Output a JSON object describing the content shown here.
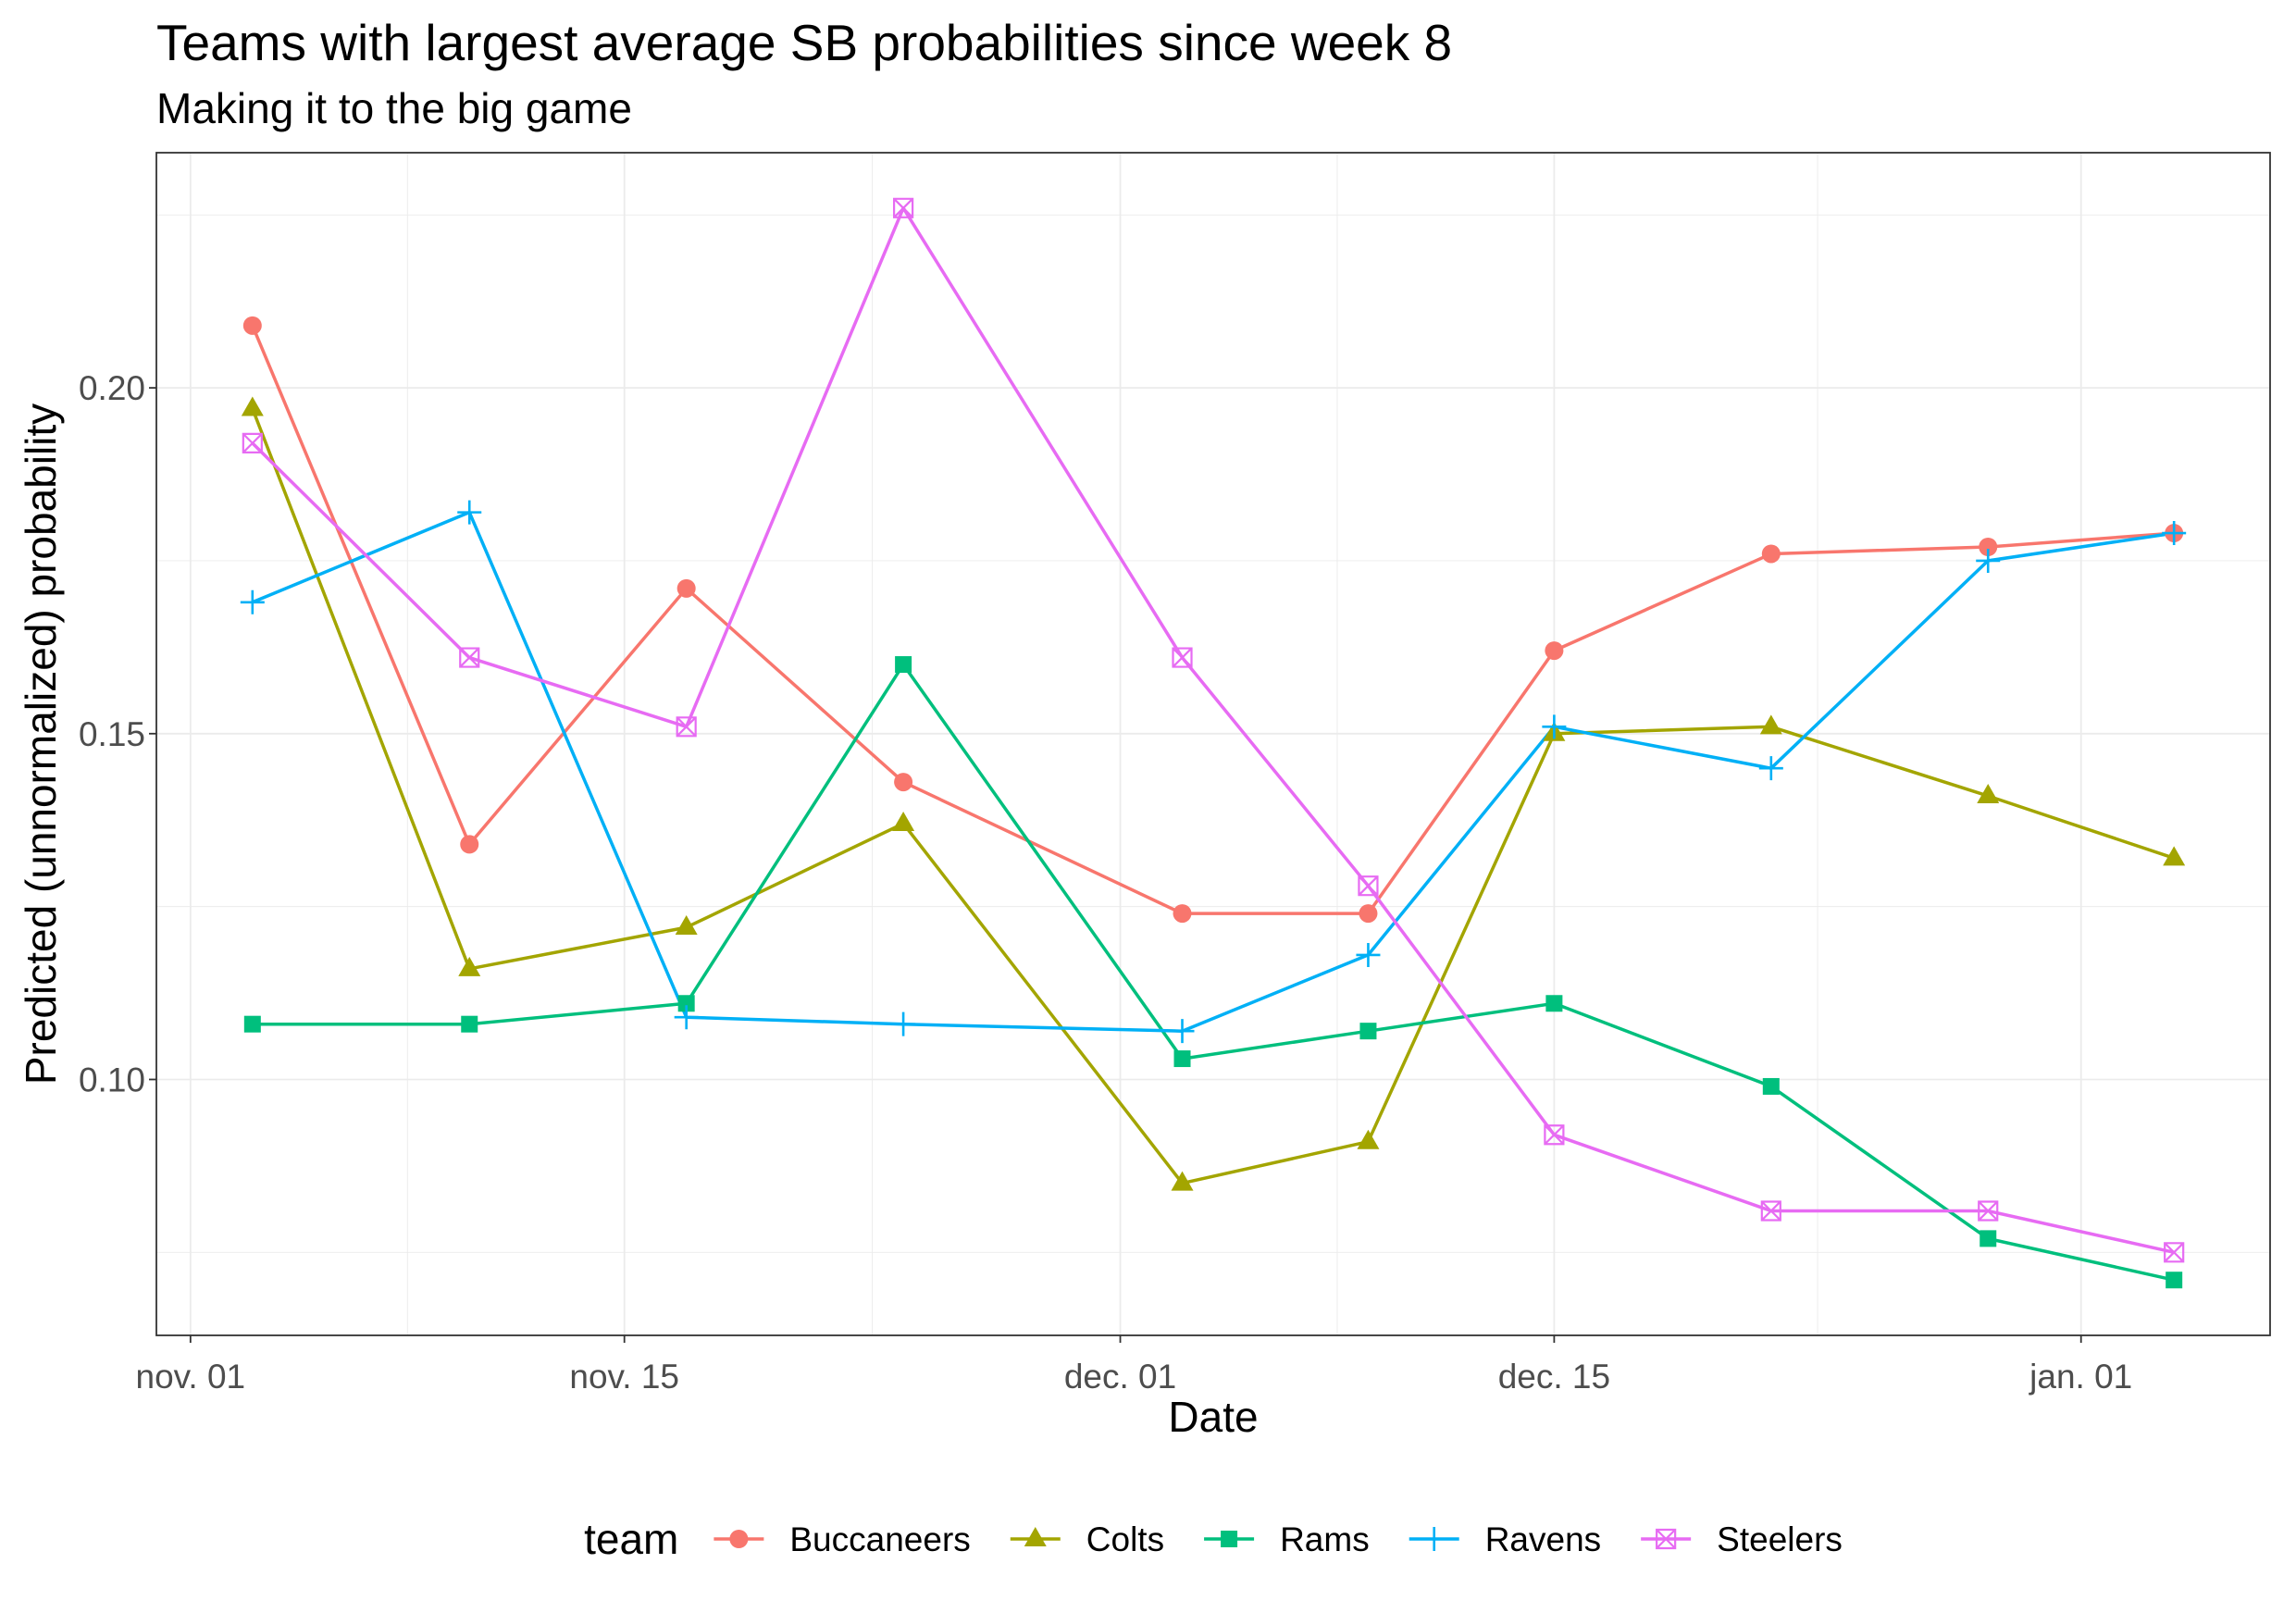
{
  "chart_data": {
    "type": "line",
    "title": "Teams with largest average SB probabilities since week 8",
    "subtitle": "Making it to the big game",
    "xlabel": "Date",
    "ylabel": "Predicted (unnormalized) probability",
    "x_ticks": [
      "nov. 01",
      "nov. 15",
      "dec. 01",
      "dec. 15",
      "jan. 01"
    ],
    "y_ticks": [
      "0.10",
      "0.15",
      "0.20"
    ],
    "ylim": [
      0.063,
      0.234
    ],
    "grid": true,
    "legend": {
      "title": "team",
      "position": "bottom"
    },
    "x": [
      "nov. 03",
      "nov. 10",
      "nov. 17",
      "nov. 24",
      "dec. 03",
      "dec. 09",
      "dec. 15",
      "dec. 22",
      "dec. 29",
      "jan. 04"
    ],
    "series": [
      {
        "name": "Buccaneers",
        "color": "#F8766D",
        "marker": "circle",
        "values": [
          0.209,
          0.134,
          0.171,
          0.143,
          0.124,
          0.124,
          0.162,
          0.176,
          0.177,
          0.179
        ]
      },
      {
        "name": "Colts",
        "color": "#A3A500",
        "marker": "triangle",
        "values": [
          0.197,
          0.116,
          0.122,
          0.137,
          0.085,
          0.091,
          0.15,
          0.151,
          0.141,
          0.132
        ]
      },
      {
        "name": "Rams",
        "color": "#00BF7D",
        "marker": "square",
        "values": [
          0.108,
          0.108,
          0.111,
          0.16,
          0.103,
          0.107,
          0.111,
          0.099,
          0.077,
          0.071
        ]
      },
      {
        "name": "Ravens",
        "color": "#00B0F6",
        "marker": "plus",
        "values": [
          0.169,
          0.182,
          0.109,
          0.108,
          0.107,
          0.118,
          0.151,
          0.145,
          0.175,
          0.179
        ]
      },
      {
        "name": "Steelers",
        "color": "#E76BF3",
        "marker": "square-x",
        "values": [
          0.192,
          0.161,
          0.151,
          0.226,
          0.161,
          0.128,
          0.092,
          0.081,
          0.081,
          0.075
        ]
      }
    ]
  }
}
